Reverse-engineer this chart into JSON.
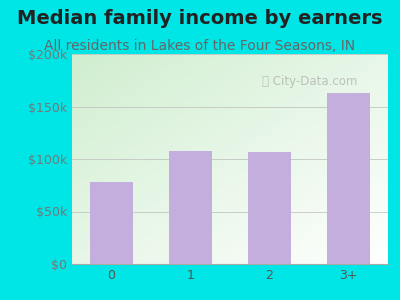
{
  "title": "Median family income by earners",
  "subtitle": "All residents in Lakes of the Four Seasons, IN",
  "categories": [
    "0",
    "1",
    "2",
    "3+"
  ],
  "values": [
    78000,
    108000,
    107000,
    163000
  ],
  "bar_color": "#C4AEDD",
  "background_outer": "#00E5E5",
  "title_color": "#222222",
  "subtitle_color": "#666666",
  "ytick_color": "#777777",
  "xtick_color": "#555555",
  "ylim": [
    0,
    200000
  ],
  "yticks": [
    0,
    50000,
    100000,
    150000,
    200000
  ],
  "ytick_labels": [
    "$0",
    "$50k",
    "$100k",
    "$150k",
    "$200k"
  ],
  "watermark": "City-Data.com",
  "title_fontsize": 14,
  "subtitle_fontsize": 10,
  "tick_fontsize": 9,
  "gradient_top_left": "#d0eed0",
  "gradient_bottom_right": "#f0fff0",
  "panel_bg": "#f5fff5"
}
